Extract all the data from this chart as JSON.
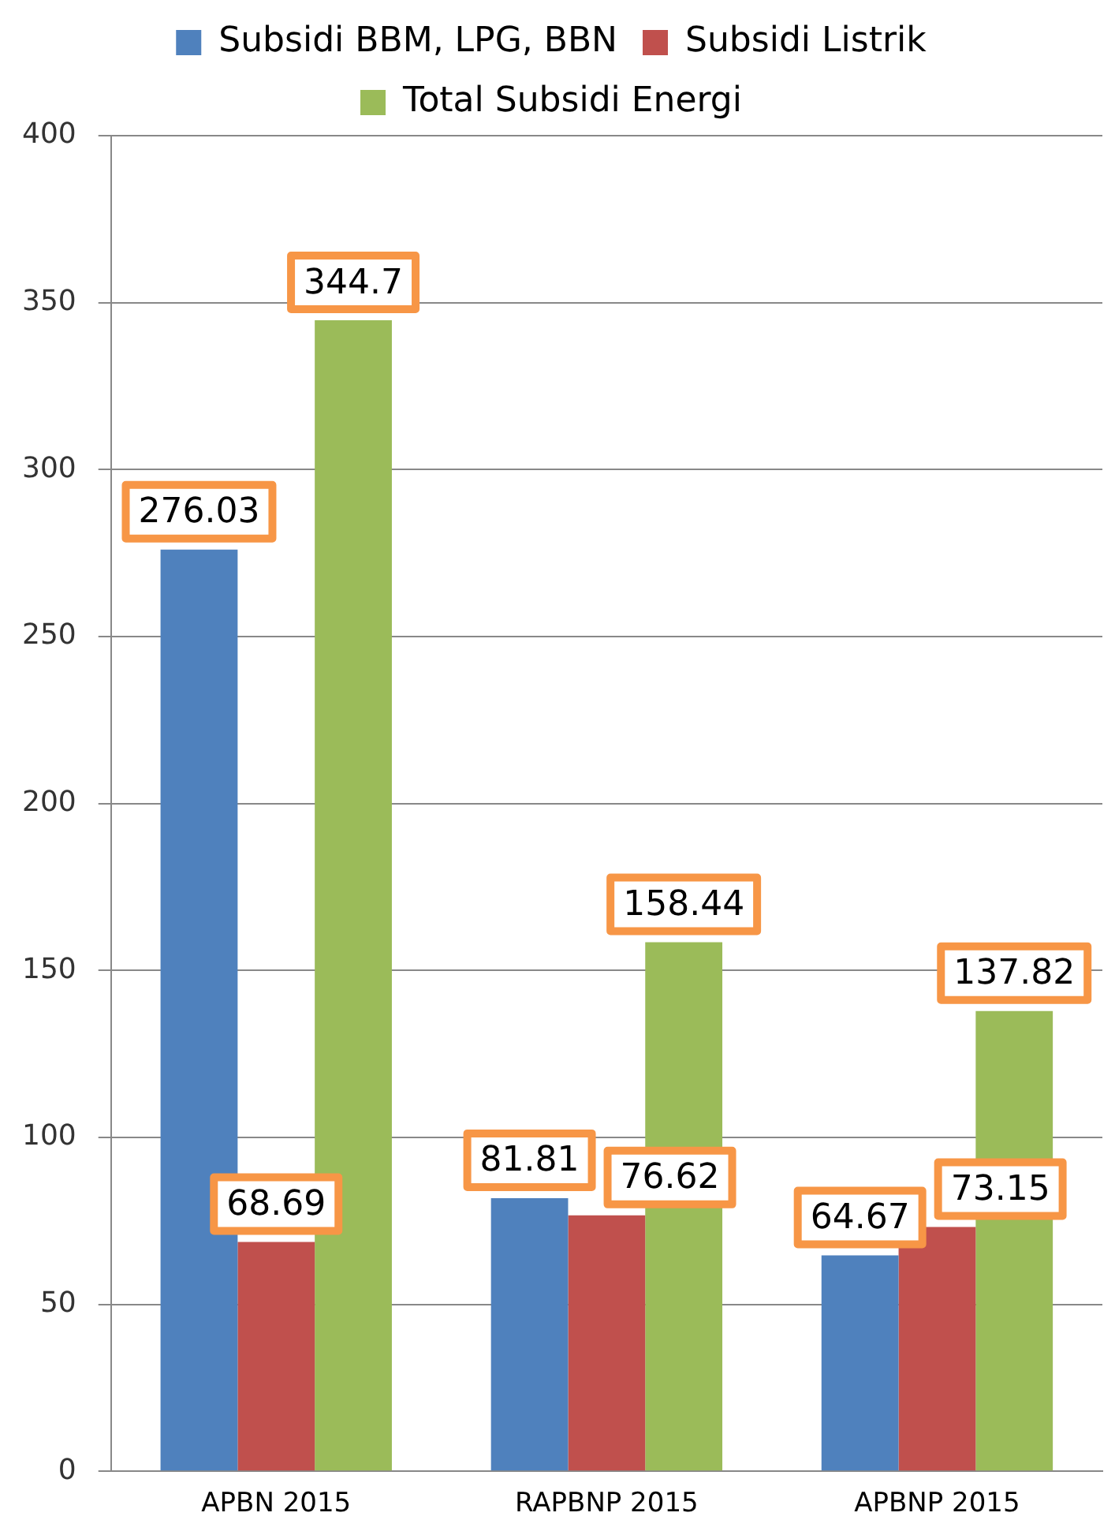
{
  "chart_data": {
    "type": "bar",
    "categories": [
      "APBN 2015",
      "RAPBNP 2015",
      "APBNP 2015"
    ],
    "series": [
      {
        "name": "Subsidi BBM, LPG, BBN",
        "color": "#4f81bd",
        "values": [
          276.03,
          81.81,
          64.67
        ]
      },
      {
        "name": "Subsidi Listrik",
        "color": "#c0504d",
        "values": [
          68.69,
          76.62,
          73.15
        ]
      },
      {
        "name": "Total Subsidi Energi",
        "color": "#9bbb59",
        "values": [
          344.7,
          158.44,
          137.82
        ]
      }
    ],
    "ylim": [
      0,
      400
    ],
    "yticks": [
      0,
      50,
      100,
      150,
      200,
      250,
      300,
      350,
      400
    ],
    "grid": "y",
    "legend": "top",
    "data_labels": true
  }
}
